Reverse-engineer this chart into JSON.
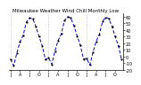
{
  "title": "Milwaukee Weather Wind Chill Monthly Low",
  "values": [
    -4,
    -14,
    5,
    22,
    32,
    52,
    58,
    57,
    45,
    30,
    16,
    -5,
    -2,
    -12,
    8,
    24,
    34,
    54,
    60,
    58,
    46,
    31,
    17,
    -4,
    -3,
    -13,
    6,
    23,
    33,
    53,
    59,
    57,
    45,
    30,
    16,
    -5
  ],
  "line_color": "#0000cc",
  "marker_color": "#000000",
  "background_color": "#ffffff",
  "grid_color": "#aaaaaa",
  "ylim": [
    -20,
    65
  ],
  "yticks": [
    -20,
    -10,
    0,
    10,
    20,
    30,
    40,
    50,
    60
  ],
  "ytick_labels": [
    "-20",
    "-10",
    "0",
    "10",
    "20",
    "30",
    "40",
    "50",
    "60"
  ],
  "xtick_positions": [
    0,
    3,
    6,
    9,
    12,
    15,
    18,
    21,
    24,
    27,
    30,
    33
  ],
  "xtick_labels": [
    "J",
    "A",
    "J",
    "O",
    "J",
    "A",
    "J",
    "O",
    "J",
    "A",
    "J",
    "O"
  ],
  "vlines": [
    0,
    12,
    24,
    36
  ],
  "xlabel_fontsize": 3.5,
  "ylabel_fontsize": 3.5,
  "title_fontsize": 4.0
}
